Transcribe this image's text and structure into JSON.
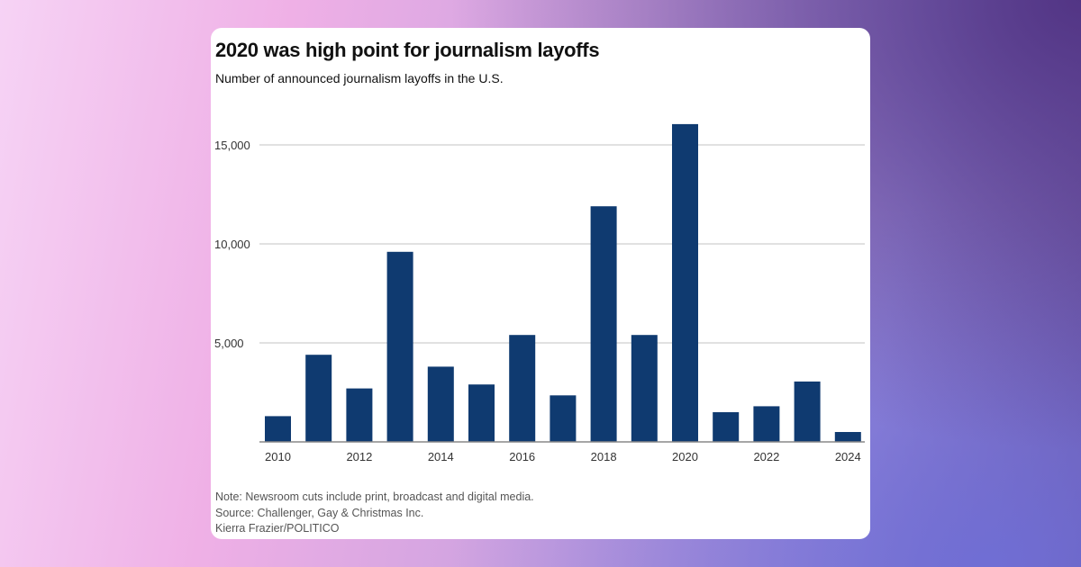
{
  "chart_data": {
    "type": "bar",
    "title": "2020 was high point for journalism layoffs",
    "subtitle": "Number of announced journalism layoffs in the U.S.",
    "xlabel": "",
    "ylabel": "",
    "categories": [
      "2010",
      "2011",
      "2012",
      "2013",
      "2014",
      "2015",
      "2016",
      "2017",
      "2018",
      "2019",
      "2020",
      "2021",
      "2022",
      "2023",
      "2024"
    ],
    "x_tick_labels": [
      "2010",
      "2012",
      "2014",
      "2016",
      "2018",
      "2020",
      "2022",
      "2024"
    ],
    "values": [
      1300,
      4400,
      2700,
      9600,
      3800,
      2900,
      5400,
      2350,
      11900,
      5400,
      16050,
      1500,
      1800,
      3050,
      500
    ],
    "ylim": [
      0,
      16500
    ],
    "y_ticks": [
      5000,
      10000,
      15000
    ],
    "y_tick_labels": [
      "5,000",
      "10,000",
      "15,000"
    ],
    "grid": true,
    "legend": "none",
    "bar_color": "#0f3a70"
  },
  "footer": {
    "note": "Note: Newsroom cuts include print, broadcast and digital media.",
    "source": "Source: Challenger, Gay & Christmas Inc.",
    "credit": "Kierra Frazier/POLITICO"
  }
}
